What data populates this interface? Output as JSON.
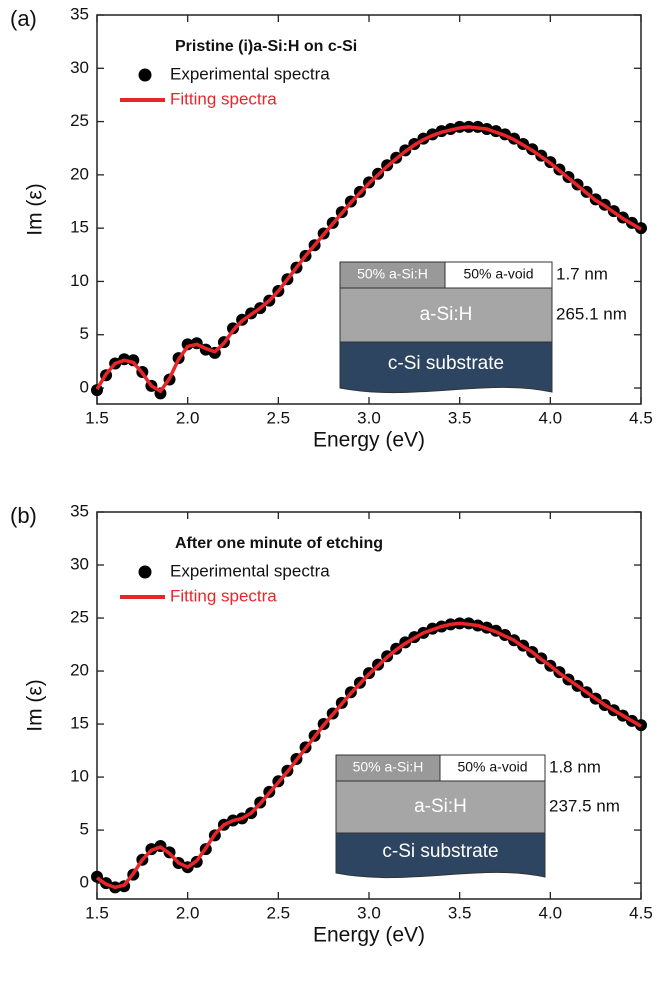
{
  "chart_data": [
    {
      "type": "scatter-line",
      "panel": "(a)",
      "title": "Pristine (i)a-Si:H on c-Si",
      "xlabel": "Energy (eV)",
      "ylabel": "Im (ε)",
      "xlim": [
        1.5,
        4.5
      ],
      "xticks": [
        1.5,
        {
          "value": 2,
          "label": "2.0"
        },
        2.5,
        {
          "value": 3,
          "label": "3.0"
        },
        3.5,
        {
          "value": 4,
          "label": "4.0"
        },
        4.5
      ],
      "ylim": [
        -1.5,
        35
      ],
      "yticks": [
        0,
        5,
        10,
        15,
        20,
        25,
        30,
        35
      ],
      "x": [
        1.5,
        1.55,
        1.6,
        1.65,
        1.7,
        1.75,
        1.8,
        1.85,
        1.9,
        1.95,
        2,
        2.05,
        2.1,
        2.15,
        2.2,
        2.25,
        2.3,
        2.35,
        2.4,
        2.45,
        2.5,
        2.55,
        2.6,
        2.65,
        2.7,
        2.75,
        2.8,
        2.85,
        2.9,
        2.95,
        3,
        3.05,
        3.1,
        3.15,
        3.2,
        3.25,
        3.3,
        3.35,
        3.4,
        3.45,
        3.5,
        3.55,
        3.6,
        3.65,
        3.7,
        3.75,
        3.8,
        3.85,
        3.9,
        3.95,
        4,
        4.05,
        4.1,
        4.15,
        4.2,
        4.25,
        4.3,
        4.35,
        4.4,
        4.45,
        4.5
      ],
      "series": [
        {
          "name": "Experimental spectra",
          "color": "#000000",
          "marker": "dot",
          "values": [
            -0.2,
            1.2,
            2.3,
            2.7,
            2.6,
            1.5,
            0.2,
            -0.5,
            0.8,
            2.8,
            4.1,
            4.2,
            3.6,
            3.3,
            4.3,
            5.6,
            6.4,
            7,
            7.5,
            8.2,
            9.1,
            10.2,
            11.3,
            12.4,
            13.4,
            14.5,
            15.5,
            16.5,
            17.5,
            18.4,
            19.3,
            20.1,
            20.9,
            21.6,
            22.3,
            22.9,
            23.4,
            23.8,
            24.1,
            24.3,
            24.5,
            24.5,
            24.5,
            24.3,
            24.1,
            23.8,
            23.4,
            22.9,
            22.4,
            21.8,
            21.2,
            20.5,
            19.8,
            19.1,
            18.4,
            17.7,
            17.2,
            16.6,
            16,
            15.5,
            15
          ]
        },
        {
          "name": "Fitting spectra",
          "color": "#e8262a",
          "marker": "line",
          "values": [
            -0.1,
            1.3,
            2.3,
            2.6,
            2.4,
            1.4,
            0.2,
            -0.3,
            0.9,
            2.7,
            3.9,
            4.1,
            3.7,
            3.4,
            4.2,
            5.4,
            6.3,
            6.9,
            7.5,
            8.2,
            9.1,
            10.2,
            11.3,
            12.4,
            13.4,
            14.4,
            15.4,
            16.4,
            17.4,
            18.3,
            19.2,
            20,
            20.8,
            21.5,
            22.2,
            22.8,
            23.3,
            23.7,
            24,
            24.2,
            24.4,
            24.5,
            24.4,
            24.3,
            24,
            23.7,
            23.3,
            22.8,
            22.3,
            21.7,
            21.1,
            20.4,
            19.7,
            19,
            18.3,
            17.6,
            17.1,
            16.5,
            15.9,
            15.4,
            14.9
          ]
        }
      ],
      "inset": {
        "top_left": "50% a-Si:H",
        "top_right": "50% a-void",
        "top_thickness": "1.7 nm",
        "middle": "a-Si:H",
        "middle_thickness": "265.1 nm",
        "bottom": "c-Si substrate"
      }
    },
    {
      "type": "scatter-line",
      "panel": "(b)",
      "title": "After one minute of etching",
      "xlabel": "Energy (eV)",
      "ylabel": "Im (ε)",
      "xlim": [
        1.5,
        4.5
      ],
      "xticks": [
        1.5,
        {
          "value": 2,
          "label": "2.0"
        },
        2.5,
        {
          "value": 3,
          "label": "3.0"
        },
        3.5,
        {
          "value": 4,
          "label": "4.0"
        },
        4.5
      ],
      "ylim": [
        -1.5,
        35
      ],
      "yticks": [
        0,
        5,
        10,
        15,
        20,
        25,
        30,
        35
      ],
      "x": [
        1.5,
        1.55,
        1.6,
        1.65,
        1.7,
        1.75,
        1.8,
        1.85,
        1.9,
        1.95,
        2,
        2.05,
        2.1,
        2.15,
        2.2,
        2.25,
        2.3,
        2.35,
        2.4,
        2.45,
        2.5,
        2.55,
        2.6,
        2.65,
        2.7,
        2.75,
        2.8,
        2.85,
        2.9,
        2.95,
        3,
        3.05,
        3.1,
        3.15,
        3.2,
        3.25,
        3.3,
        3.35,
        3.4,
        3.45,
        3.5,
        3.55,
        3.6,
        3.65,
        3.7,
        3.75,
        3.8,
        3.85,
        3.9,
        3.95,
        4,
        4.05,
        4.1,
        4.15,
        4.2,
        4.25,
        4.3,
        4.35,
        4.4,
        4.45,
        4.5
      ],
      "series": [
        {
          "name": "Experimental spectra",
          "color": "#000000",
          "marker": "dot",
          "values": [
            0.6,
            0,
            -0.4,
            -0.3,
            0.8,
            2.2,
            3.2,
            3.5,
            2.9,
            1.9,
            1.5,
            2,
            3.2,
            4.5,
            5.5,
            5.9,
            6.1,
            6.6,
            7.6,
            8.6,
            9.6,
            10.6,
            11.7,
            12.8,
            13.9,
            15,
            16,
            17,
            18,
            18.9,
            19.8,
            20.6,
            21.4,
            22.1,
            22.7,
            23.2,
            23.6,
            24,
            24.2,
            24.4,
            24.5,
            24.5,
            24.3,
            24.1,
            23.8,
            23.4,
            22.9,
            22.4,
            21.8,
            21.2,
            20.5,
            19.9,
            19.2,
            18.6,
            18,
            17.4,
            16.8,
            16.3,
            15.8,
            15.3,
            14.9
          ]
        },
        {
          "name": "Fitting spectra",
          "color": "#e8262a",
          "marker": "line",
          "values": [
            0.5,
            -0.1,
            -0.4,
            -0.2,
            0.9,
            2.2,
            3.1,
            3.4,
            2.8,
            1.9,
            1.5,
            2.1,
            3.3,
            4.6,
            5.5,
            5.9,
            6.1,
            6.6,
            7.5,
            8.5,
            9.5,
            10.5,
            11.6,
            12.7,
            13.8,
            14.9,
            15.9,
            16.9,
            17.9,
            18.8,
            19.7,
            20.5,
            21.3,
            22,
            22.6,
            23.1,
            23.6,
            23.9,
            24.2,
            24.4,
            24.5,
            24.4,
            24.3,
            24,
            23.7,
            23.3,
            22.9,
            22.3,
            21.8,
            21.1,
            20.5,
            19.8,
            19.2,
            18.6,
            18,
            17.4,
            16.8,
            16.3,
            15.8,
            15.3,
            14.8
          ]
        }
      ],
      "inset": {
        "top_left": "50% a-Si:H",
        "top_right": "50% a-void",
        "top_thickness": "1.8 nm",
        "middle": "a-Si:H",
        "middle_thickness": "237.5 nm",
        "bottom": "c-Si substrate"
      }
    }
  ]
}
